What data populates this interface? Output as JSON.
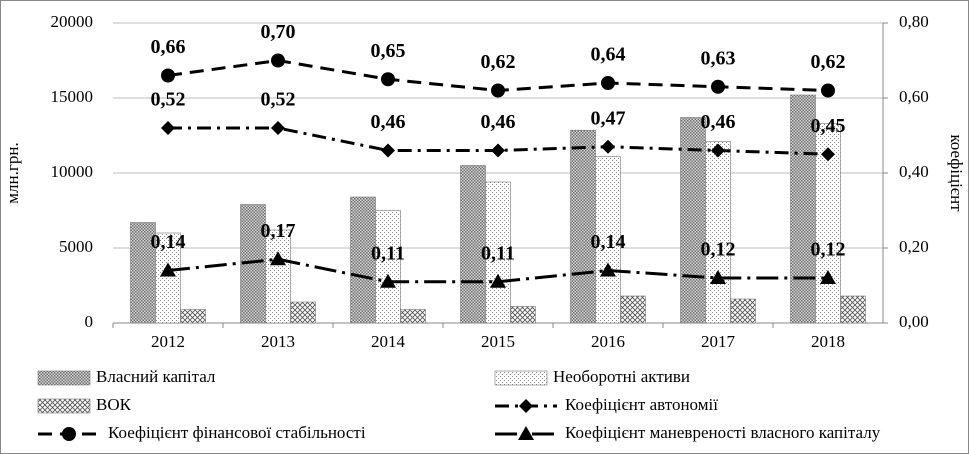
{
  "chart_data": {
    "type": "bar_line",
    "categories": [
      "2012",
      "2013",
      "2014",
      "2015",
      "2016",
      "2017",
      "2018"
    ],
    "ylabel": "млн.грн.",
    "y2label": "коефіцієнт",
    "ylim": [
      0,
      20000
    ],
    "yticks": [
      0,
      5000,
      10000,
      15000,
      20000
    ],
    "y2lim": [
      0,
      0.8
    ],
    "y2ticks": [
      {
        "value": 0,
        "label": "0,00"
      },
      {
        "value": 0.2,
        "label": "0,20"
      },
      {
        "value": 0.4,
        "label": "0,40"
      },
      {
        "value": 0.6,
        "label": "0,60"
      },
      {
        "value": 0.8,
        "label": "0,80"
      }
    ],
    "grid": true,
    "legend": "bottom",
    "series": [
      {
        "name": "Власний капітал",
        "type": "bar",
        "pattern": "dense-dots",
        "color": "#6e6e6e",
        "values": [
          6700,
          7900,
          8400,
          10500,
          12850,
          13700,
          15200
        ]
      },
      {
        "name": "Необоротні активи",
        "type": "bar",
        "pattern": "sparse-dots",
        "color": "#8a8a8a",
        "values": [
          6000,
          6200,
          7500,
          9400,
          11100,
          12100,
          13300
        ]
      },
      {
        "name": "ВОК",
        "type": "bar",
        "pattern": "hatch",
        "color": "#555555",
        "values": [
          900,
          1400,
          900,
          1100,
          1800,
          1600,
          1800
        ]
      },
      {
        "name": "Коефіцієнт автономії",
        "type": "line",
        "axis": "y2",
        "marker": "diamond",
        "linestyle": "dashdot",
        "color": "#000000",
        "values": [
          0.52,
          0.52,
          0.46,
          0.46,
          0.47,
          0.46,
          0.45
        ],
        "value_labels": [
          "0,52",
          "0,52",
          "0,46",
          "0,46",
          "0,47",
          "0,46",
          "0,45"
        ]
      },
      {
        "name": "Коефіцієнт фінансової стабільності",
        "type": "line",
        "axis": "y2",
        "marker": "circle",
        "linestyle": "dash",
        "color": "#000000",
        "values": [
          0.66,
          0.7,
          0.65,
          0.62,
          0.64,
          0.63,
          0.62
        ],
        "value_labels": [
          "0,66",
          "0,70",
          "0,65",
          "0,62",
          "0,64",
          "0,63",
          "0,62"
        ]
      },
      {
        "name": "Коефіцієнт маневреності власного капіталу",
        "type": "line",
        "axis": "y2",
        "marker": "triangle",
        "linestyle": "longdashdot",
        "color": "#000000",
        "values": [
          0.14,
          0.17,
          0.11,
          0.11,
          0.14,
          0.12,
          0.12
        ],
        "value_labels": [
          "0,14",
          "0,17",
          "0,11",
          "0,11",
          "0,14",
          "0,12",
          "0,12"
        ]
      }
    ]
  }
}
